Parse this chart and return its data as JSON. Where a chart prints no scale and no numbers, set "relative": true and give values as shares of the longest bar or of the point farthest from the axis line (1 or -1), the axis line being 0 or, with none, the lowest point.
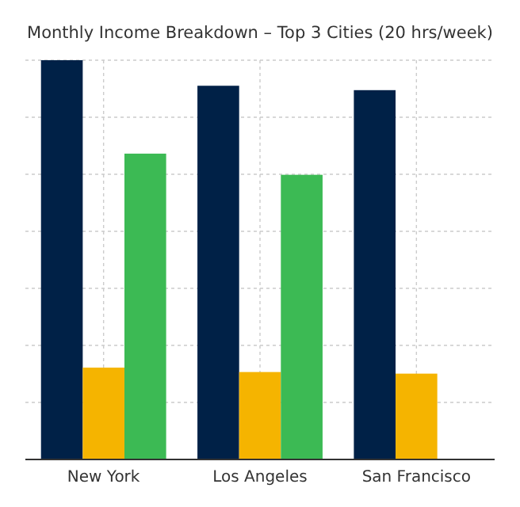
{
  "chart_data": {
    "type": "bar",
    "title": "Monthly Income Breakdown – Top 3 Cities (20 hrs/week)",
    "categories": [
      "New York",
      "Los Angeles",
      "San Francisco"
    ],
    "relative": true,
    "grid": true,
    "series": [
      {
        "color": "#002147",
        "values": [
          1,
          0.936,
          0.925
        ]
      },
      {
        "color": "#f5b400",
        "values": [
          0.23,
          0.219,
          0.215
        ]
      },
      {
        "color": "#3cba54",
        "values": [
          0.766,
          0.713,
          null
        ]
      }
    ]
  }
}
